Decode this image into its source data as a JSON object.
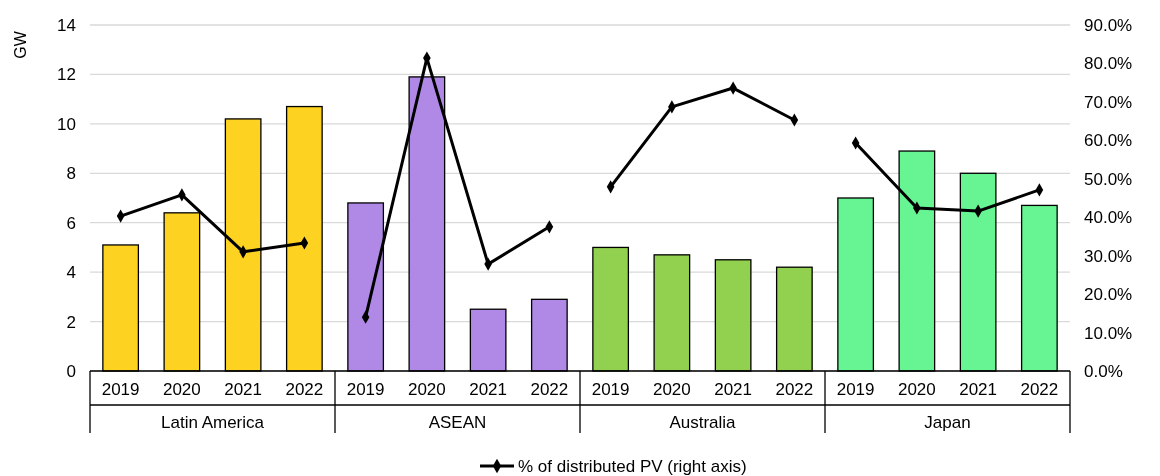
{
  "chart_data": {
    "type": "bar",
    "ylabel": "GW",
    "categories": [
      "2019",
      "2020",
      "2021",
      "2022",
      "2019",
      "2020",
      "2021",
      "2022",
      "2019",
      "2020",
      "2021",
      "2022",
      "2019",
      "2020",
      "2021",
      "2022"
    ],
    "annotations": [
      "Latin America",
      "ASEAN",
      "Australia",
      "Japan"
    ],
    "series": [
      {
        "values": [
          5.1,
          6.4,
          10.2,
          10.7,
          6.8,
          11.9,
          2.5,
          2.9,
          5.0,
          4.7,
          4.5,
          4.2,
          7.0,
          8.9,
          8.0,
          6.7
        ],
        "colors": [
          "#fdd221",
          "#fdd221",
          "#fdd221",
          "#fdd221",
          "#b088e6",
          "#b088e6",
          "#b088e6",
          "#b088e6",
          "#92d050",
          "#92d050",
          "#92d050",
          "#92d050",
          "#66f592",
          "#66f592",
          "#66f592",
          "#66f592"
        ]
      },
      {
        "type": "line",
        "name": "% of distributed PV (right axis)",
        "axis": "y2",
        "color": "#000000",
        "marker": "diamond",
        "values": [
          40.3,
          45.8,
          31.0,
          33.3,
          14.0,
          81.4,
          27.8,
          37.5,
          47.9,
          68.7,
          73.6,
          65.3,
          59.3,
          42.4,
          41.6,
          47.1
        ]
      }
    ],
    "ylim": [
      0,
      14
    ],
    "yticks": [
      0,
      2,
      4,
      6,
      8,
      10,
      12,
      14
    ],
    "y2lim": [
      0,
      90
    ],
    "y2ticks": [
      {
        "value": 0,
        "label": "0.0%"
      },
      {
        "value": 10,
        "label": "10.0%"
      },
      {
        "value": 20,
        "label": "20.0%"
      },
      {
        "value": 30,
        "label": "30.0%"
      },
      {
        "value": 40,
        "label": "40.0%"
      },
      {
        "value": 50,
        "label": "50.0%"
      },
      {
        "value": 60,
        "label": "60.0%"
      },
      {
        "value": 70,
        "label": "70.0%"
      },
      {
        "value": 80,
        "label": "80.0%"
      },
      {
        "value": 90,
        "label": "90.0%"
      }
    ],
    "grid": "y",
    "legend": "bottom"
  }
}
